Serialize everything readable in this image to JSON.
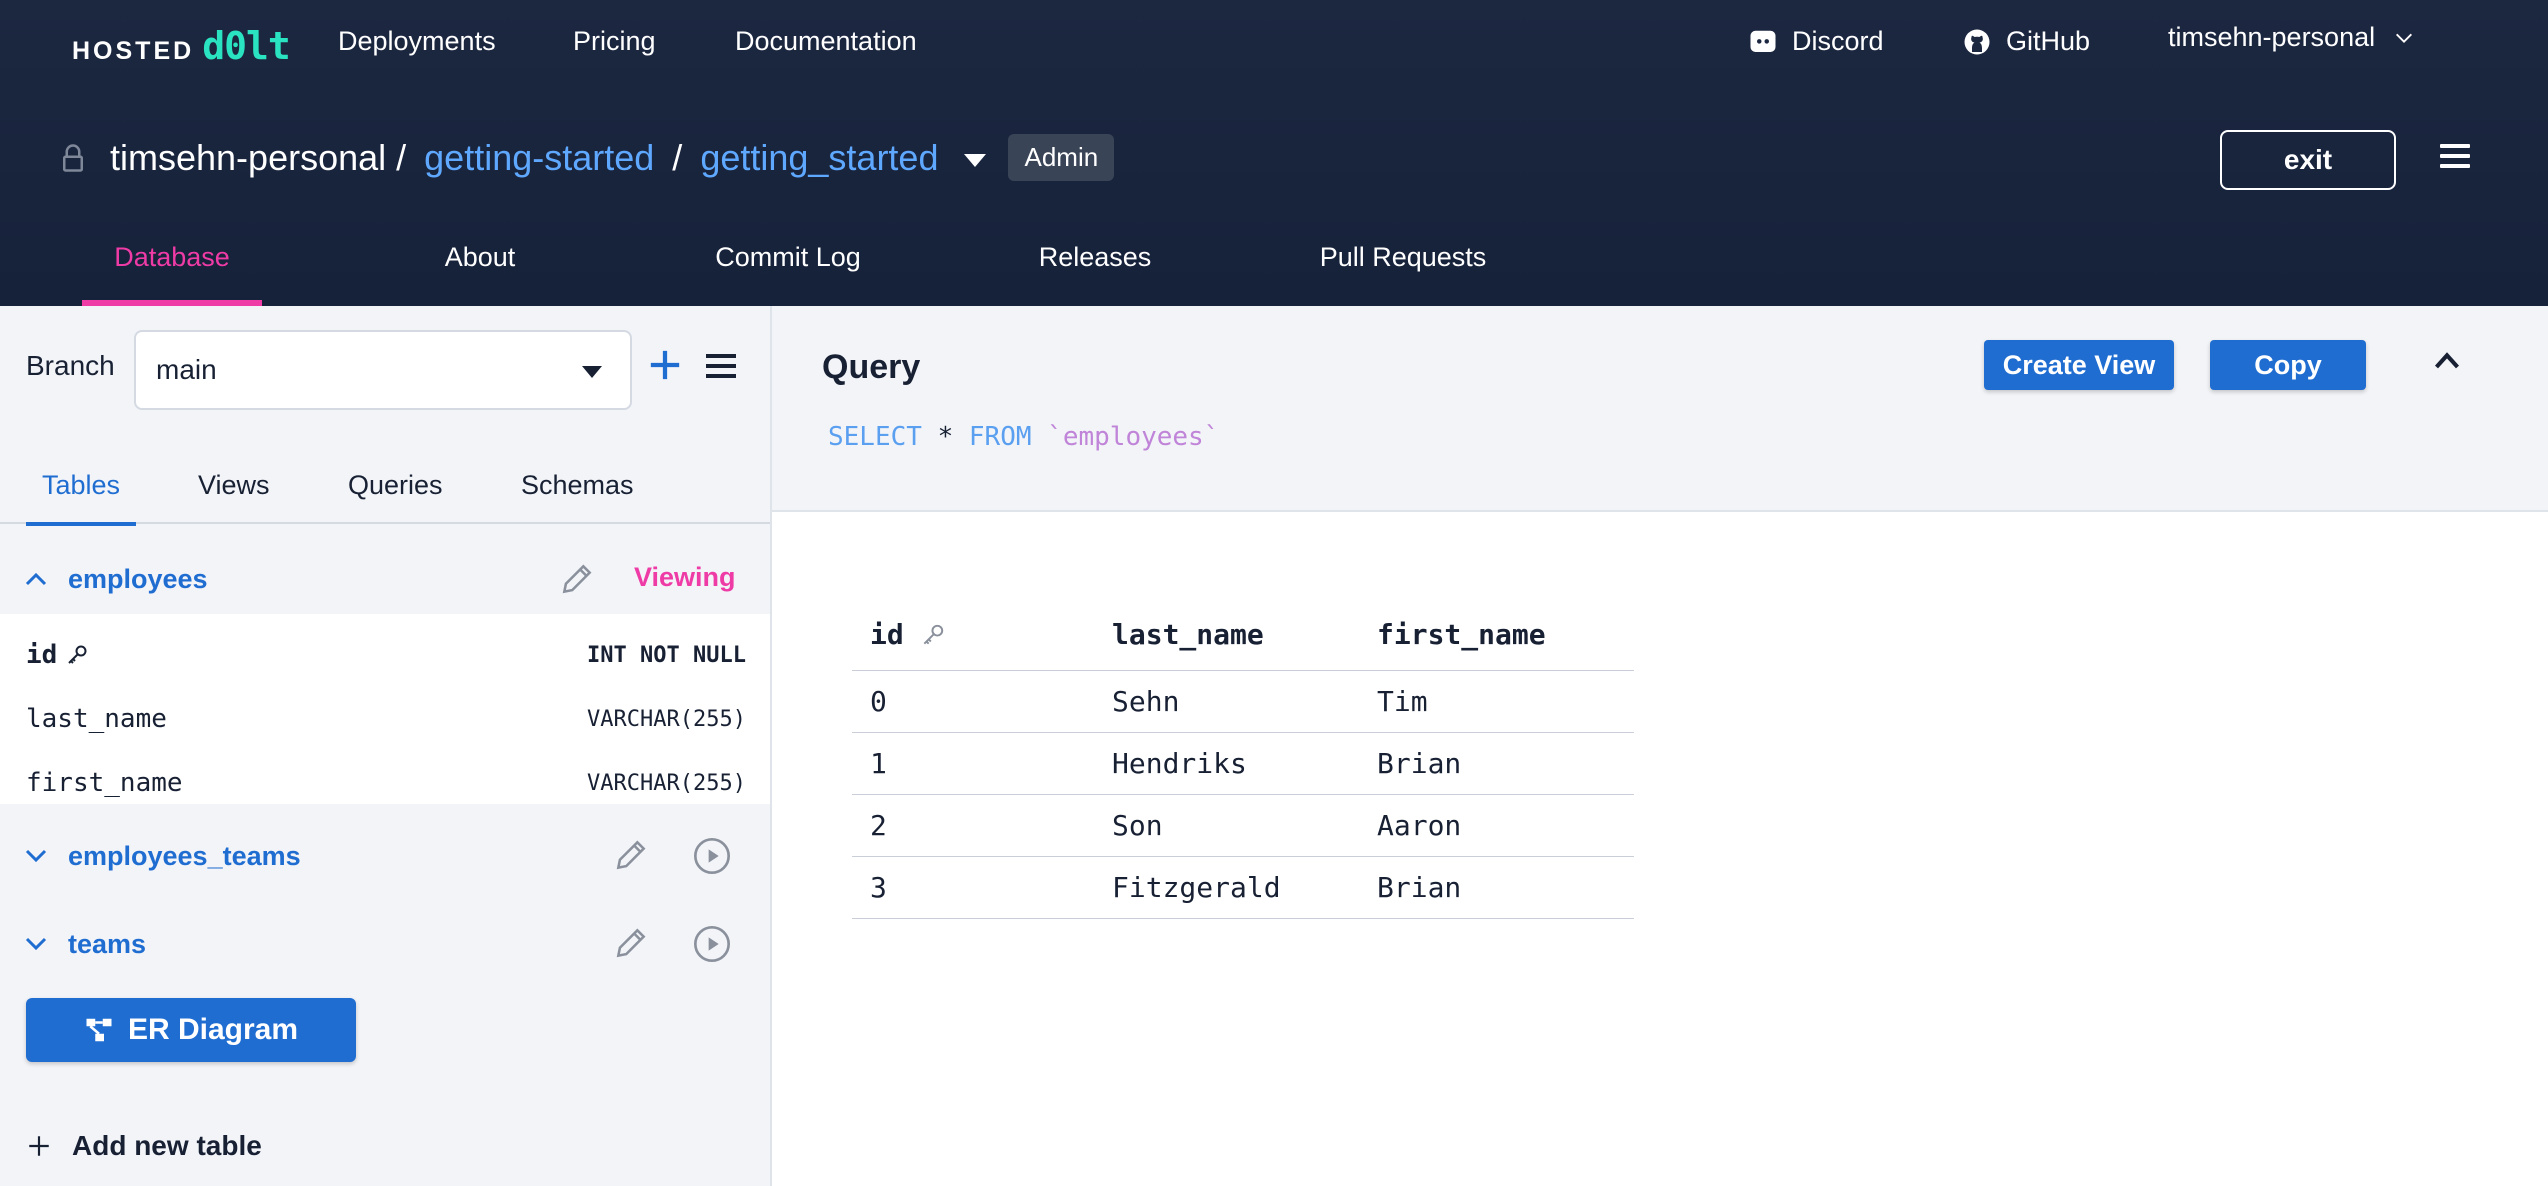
{
  "logo": {
    "part1": "HOSTED",
    "part2": "d0lt"
  },
  "topnav": {
    "links": [
      "Deployments",
      "Pricing",
      "Documentation"
    ],
    "discord": "Discord",
    "github": "GitHub",
    "user": "timsehn-personal"
  },
  "breadcrumb": {
    "owner": "timsehn-personal",
    "sep": "/",
    "db": "getting-started",
    "db2": "getting_started",
    "badge": "Admin"
  },
  "exit_label": "exit",
  "tabs": [
    "Database",
    "About",
    "Commit Log",
    "Releases",
    "Pull Requests"
  ],
  "sidebar": {
    "branch_label": "Branch",
    "branch_value": "main",
    "sub_tabs": [
      "Tables",
      "Views",
      "Queries",
      "Schemas"
    ],
    "tables": [
      {
        "name": "employees",
        "status": "Viewing",
        "expanded": true,
        "columns": [
          {
            "name": "id",
            "type": "INT NOT NULL"
          },
          {
            "name": "last_name",
            "type": "VARCHAR(255)"
          },
          {
            "name": "first_name",
            "type": "VARCHAR(255)"
          }
        ]
      },
      {
        "name": "employees_teams",
        "expanded": false
      },
      {
        "name": "teams",
        "expanded": false
      }
    ],
    "er_button": "ER Diagram",
    "add_table": "Add new table"
  },
  "query": {
    "title": "Query",
    "create_view": "Create View",
    "copy": "Copy",
    "sql": {
      "select": "SELECT",
      "star": "*",
      "from": "FROM",
      "table": "`employees`"
    }
  },
  "results": {
    "headers": [
      "id",
      "last_name",
      "first_name"
    ],
    "rows": [
      [
        "0",
        "Sehn",
        "Tim"
      ],
      [
        "1",
        "Hendriks",
        "Brian"
      ],
      [
        "2",
        "Son",
        "Aaron"
      ],
      [
        "3",
        "Fitzgerald",
        "Brian"
      ]
    ]
  },
  "colors": {
    "accent": "#1f6dd1",
    "pink": "#ee3ba6",
    "header_bg": "#1c2740",
    "logo_green": "#29e3c1"
  }
}
